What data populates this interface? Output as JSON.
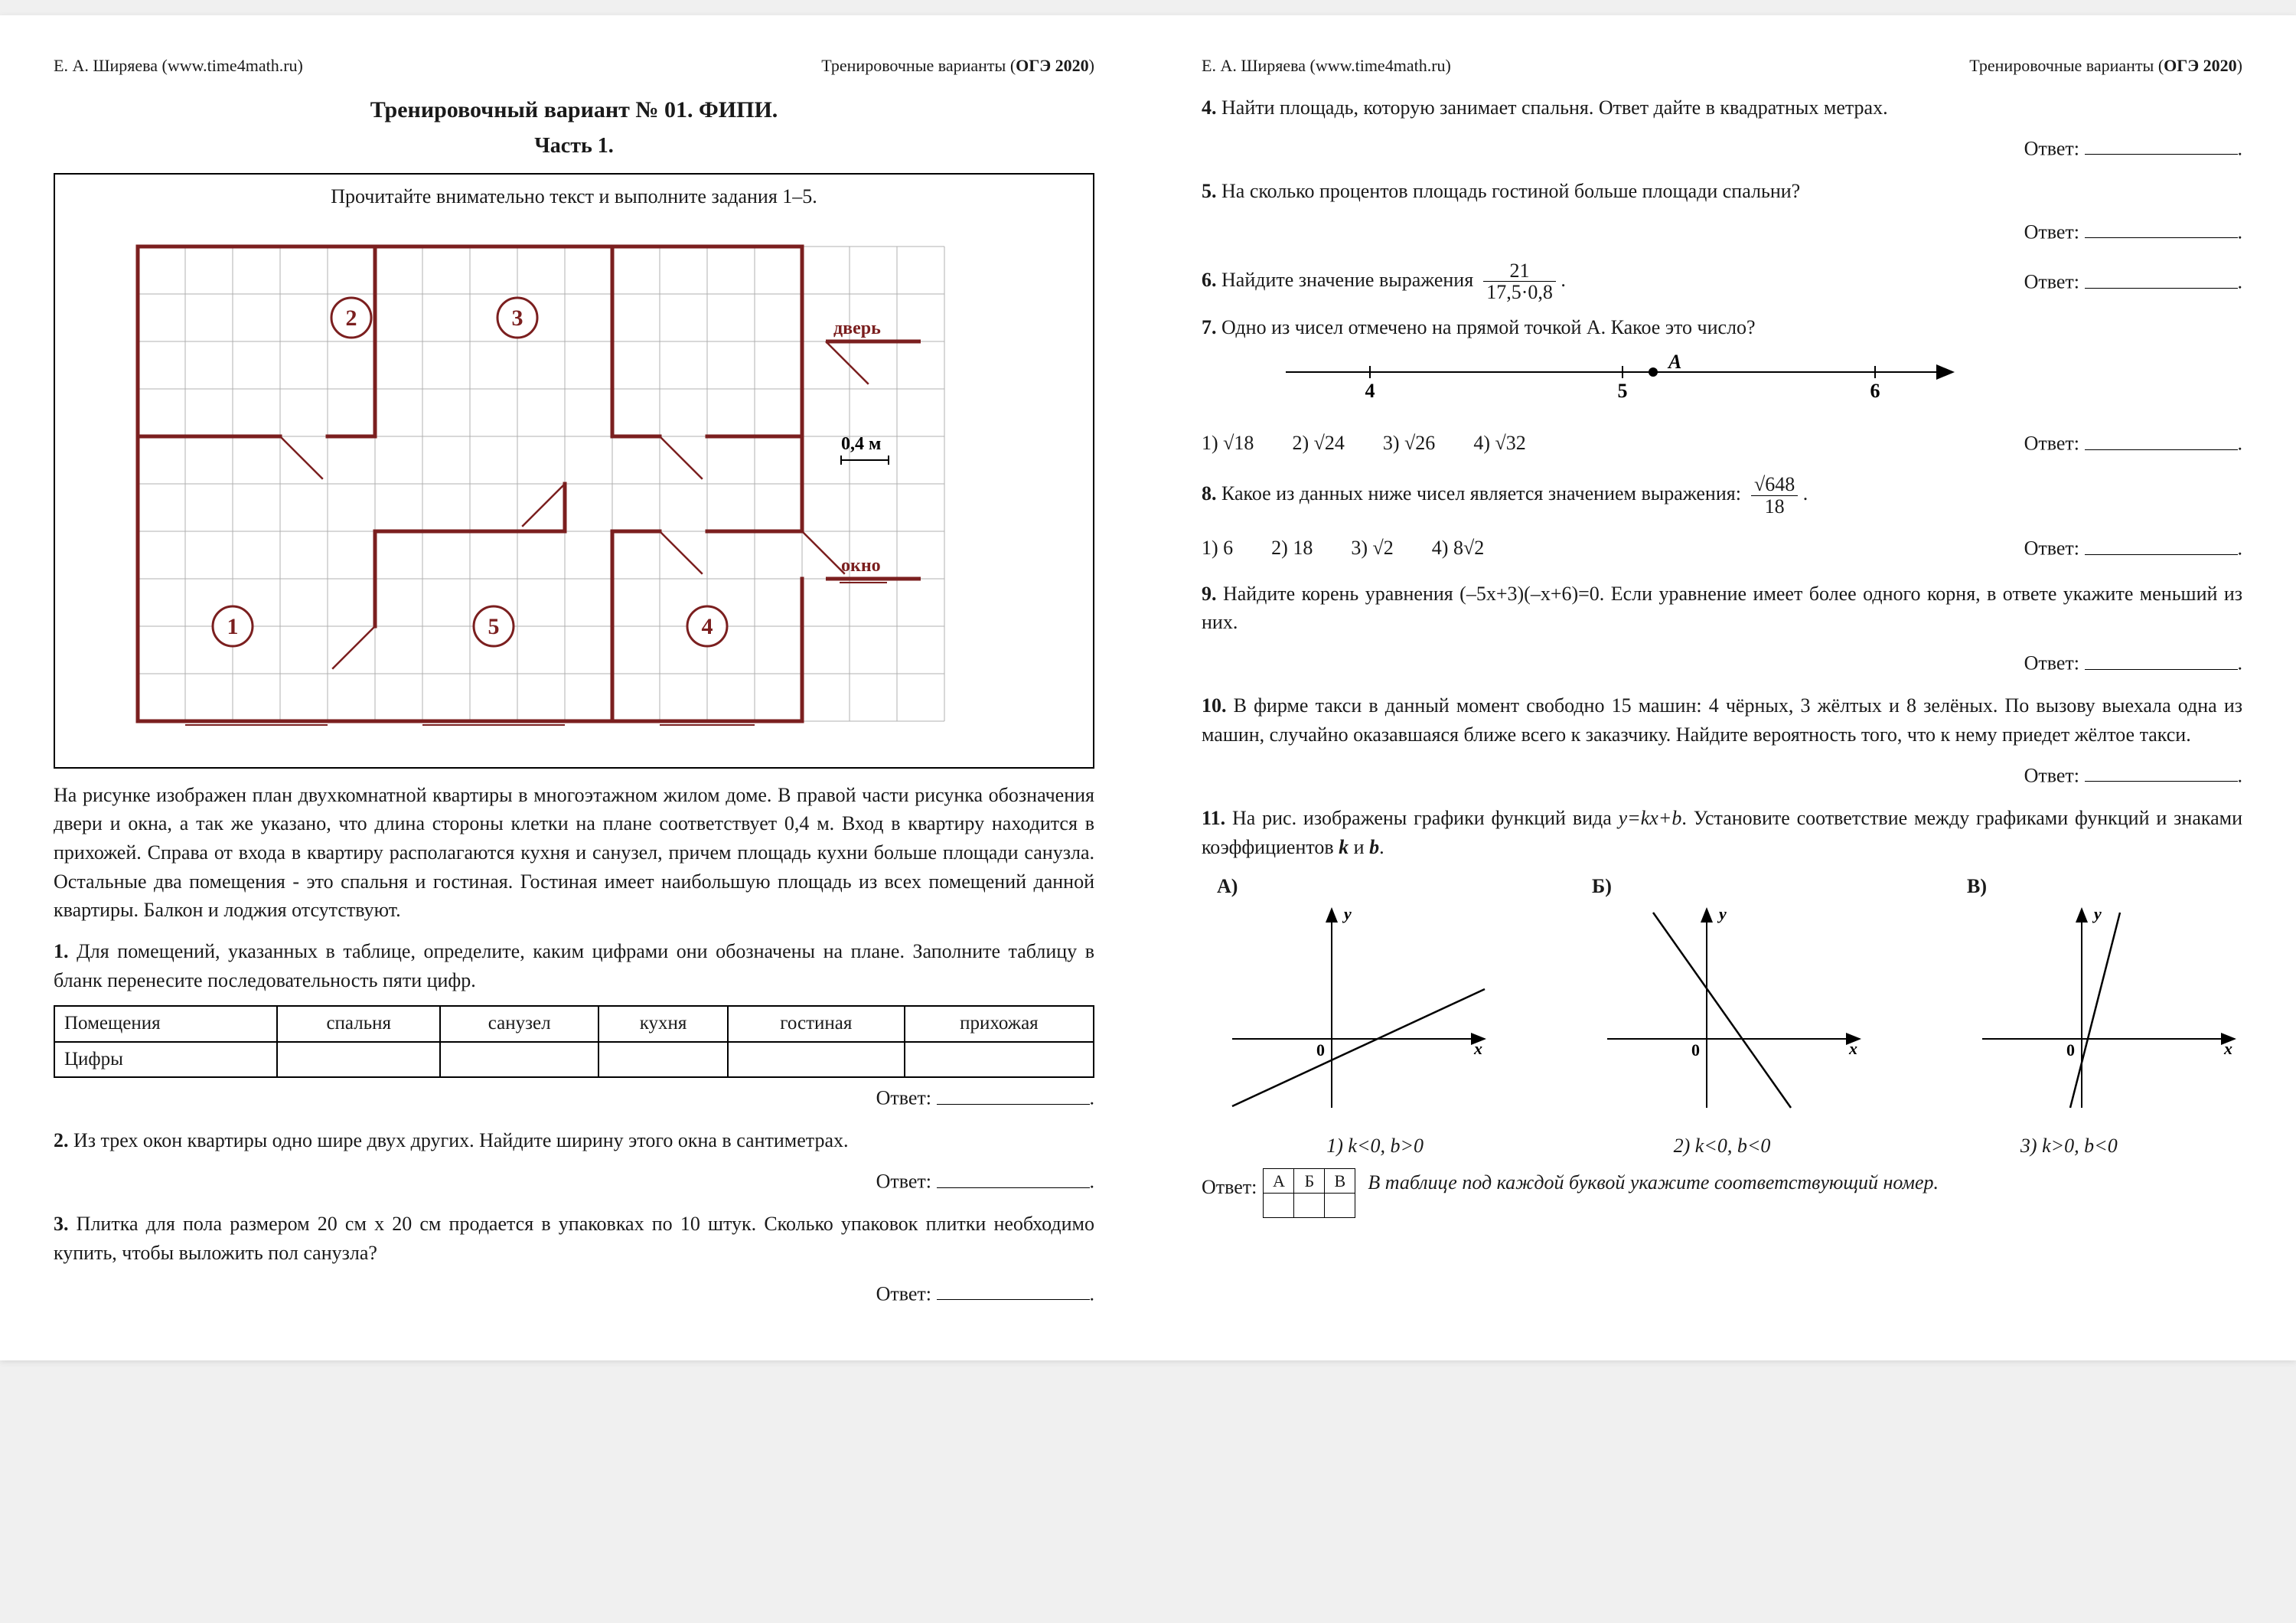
{
  "header": {
    "author": "Е. А. Ширяева (www.time4math.ru)",
    "right": "Тренировочные варианты (",
    "right_bold": "ОГЭ 2020",
    "right_close": ")"
  },
  "title": "Тренировочный вариант № 01. ФИПИ.",
  "subtitle": "Часть 1.",
  "box_title": "Прочитайте внимательно текст и выполните задания 1–5.",
  "plan": {
    "grid_color": "#b0b0b0",
    "wall_color": "#7b1f1f",
    "label_door": "дверь",
    "label_scale": "0,4 м",
    "label_window": "окно",
    "cell": 32,
    "cols": 17,
    "rows": 10
  },
  "desc": "На рисунке изображен план двухкомнатной квартиры в многоэтажном жилом доме. В правой части рисунка обозначения двери и окна, а так же указано, что длина стороны клетки на плане соответствует 0,4 м. Вход в квартиру находится в прихожей. Справа от входа в квартиру располагаются кухня и санузел, причем площадь кухни больше площади санузла. Остальные два помещения - это спальня и гостиная. Гостиная имеет наибольшую площадь из всех помещений данной квартиры. Балкон и лоджия отсутствуют.",
  "q1": {
    "num": "1.",
    "text": "Для помещений, указанных в таблице, определите, каким цифрами они обозначены на плане. Заполните таблицу в бланк перенесите последовательность пяти цифр."
  },
  "rooms": {
    "head": "Помещения",
    "c1": "спальня",
    "c2": "санузел",
    "c3": "кухня",
    "c4": "гостиная",
    "c5": "прихожая",
    "row2": "Цифры"
  },
  "q2": {
    "num": "2.",
    "text": "Из трех окон квартиры одно шире двух других. Найдите ширину этого окна в сантиметрах."
  },
  "q3": {
    "num": "3.",
    "text": "Плитка для пола размером 20 см х 20 см продается в упаковках по 10 штук. Сколько упаковок плитки необходимо купить, чтобы выложить пол санузла?"
  },
  "q4": {
    "num": "4.",
    "text": "Найти площадь, которую занимает спальня. Ответ дайте в квадратных метрах."
  },
  "q5": {
    "num": "5.",
    "text": "На сколько процентов площадь гостиной больше площади спальни?"
  },
  "q6": {
    "num": "6.",
    "text_a": "Найдите значение выражения",
    "num_frac": "21",
    "den_frac": "17,5·0,8"
  },
  "q7": {
    "num": "7.",
    "text": "Одно из чисел отмечено на прямой точкой А. Какое это число?",
    "opts": [
      "1) √18",
      "2) √24",
      "3) √26",
      "4) √32"
    ]
  },
  "q8": {
    "num": "8.",
    "text": "Какое из данных ниже чисел является значением выражения:",
    "num_frac": "√648",
    "den_frac": "18",
    "opts": [
      "1) 6",
      "2) 18",
      "3) √2",
      "4) 8√2"
    ]
  },
  "q9": {
    "num": "9.",
    "text": "Найдите корень уравнения (–5x+3)(–x+6)=0. Если уравнение имеет более одного корня, в ответе укажите меньший из них."
  },
  "q10": {
    "num": "10.",
    "text": "В фирме такси в данный момент свободно 15 машин: 4 чёрных, 3 жёлтых и 8 зелёных. По вызову выехала одна из машин, случайно оказавшаяся ближе всего к заказчику. Найдите вероятность того, что к нему приедет жёлтое такси."
  },
  "q11": {
    "num": "11.",
    "text_a": "На рис. изображены графики функций вида ",
    "formula": "y=kx+b",
    "text_b": ". Установите соответствие между графиками функций и знаками коэффициентов ",
    "kb": "k",
    "and": " и ",
    "b": "b",
    "labels": [
      "А)",
      "Б)",
      "В)"
    ],
    "opts": [
      "1) k<0, b>0",
      "2) k<0, b<0",
      "3) k>0, b<0"
    ],
    "table_head": [
      "А",
      "Б",
      "В"
    ],
    "hint": "В таблице под каждой буквой укажите соответствующий номер."
  },
  "answer": "Ответ:",
  "answer_colon": "Ответ: "
}
